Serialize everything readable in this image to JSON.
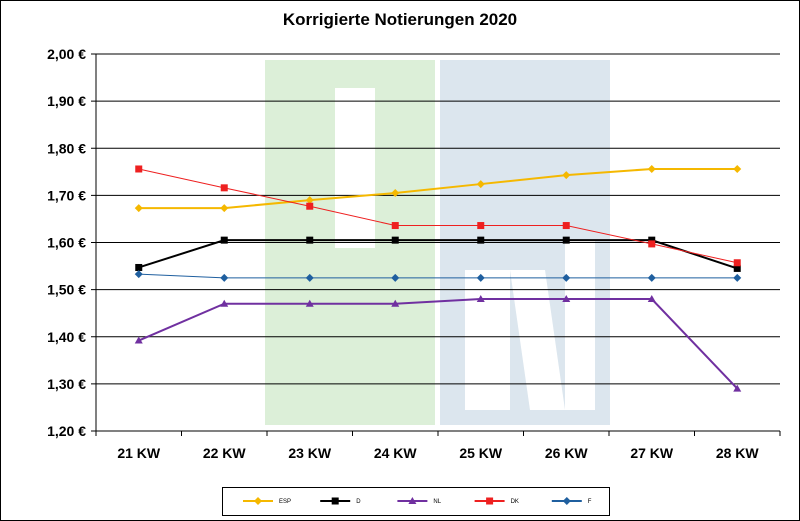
{
  "chart_data": {
    "type": "line",
    "title": "Korrigierte Notierungen 2020",
    "xlabel": "",
    "ylabel": "",
    "categories": [
      "21 KW",
      "22 KW",
      "23 KW",
      "24 KW",
      "25 KW",
      "26 KW",
      "27 KW",
      "28 KW"
    ],
    "ylim": [
      1.2,
      2.0
    ],
    "yticks": [
      1.2,
      1.3,
      1.4,
      1.5,
      1.6,
      1.7,
      1.8,
      1.9,
      2.0
    ],
    "ytick_labels": [
      "1,20 €",
      "1,30 €",
      "1,40 €",
      "1,50 €",
      "1,60 €",
      "1,70 €",
      "1,80 €",
      "1,90 €",
      "2,00 €"
    ],
    "grid": true,
    "legend_position": "bottom",
    "series": [
      {
        "name": "ESP",
        "color": "#F5B800",
        "marker": "diamond",
        "values": [
          1.673,
          1.673,
          1.69,
          1.705,
          1.724,
          1.743,
          1.756,
          1.756
        ]
      },
      {
        "name": "D",
        "color": "#000000",
        "marker": "square",
        "values": [
          1.547,
          1.605,
          1.605,
          1.605,
          1.605,
          1.605,
          1.605,
          1.545
        ]
      },
      {
        "name": "NL",
        "color": "#7030A0",
        "marker": "triangle",
        "values": [
          1.392,
          1.47,
          1.47,
          1.47,
          1.48,
          1.48,
          1.48,
          1.29
        ]
      },
      {
        "name": "DK",
        "color": "#EE2020",
        "marker": "square",
        "values": [
          1.756,
          1.716,
          1.677,
          1.636,
          1.636,
          1.636,
          1.597,
          1.557
        ]
      },
      {
        "name": "F",
        "color": "#1F5F9F",
        "marker": "diamond",
        "values": [
          1.533,
          1.525,
          1.525,
          1.525,
          1.525,
          1.525,
          1.525,
          1.525
        ]
      }
    ]
  }
}
